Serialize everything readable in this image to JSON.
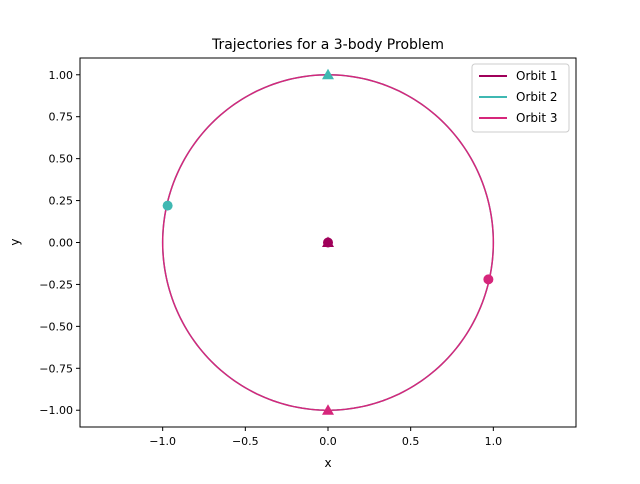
{
  "chart_data": {
    "type": "line",
    "title": "Trajectories for a 3-body Problem",
    "xlabel": "x",
    "ylabel": "y",
    "xlim": [
      -1.5,
      1.5
    ],
    "ylim": [
      -1.1,
      1.1
    ],
    "x_ticks": [
      -1.0,
      -0.5,
      0.0,
      0.5,
      1.0
    ],
    "x_tick_labels": [
      "−1.0",
      "−0.5",
      "0.0",
      "0.5",
      "1.0"
    ],
    "y_ticks": [
      1.0,
      0.75,
      0.5,
      0.25,
      0.0,
      -0.25,
      -0.5,
      -0.75,
      -1.0
    ],
    "y_tick_labels": [
      "1.00",
      "0.75",
      "0.50",
      "0.25",
      "0.00",
      "−0.25",
      "−0.50",
      "−0.75",
      "−1.00"
    ],
    "grid": false,
    "legend_position": "top-right",
    "series": [
      {
        "name": "Orbit 1",
        "color": "#a0005a",
        "center": [
          0.0,
          0.0
        ],
        "radius": 0.0,
        "start": [
          0.0,
          0.0
        ],
        "end": [
          0.0,
          0.0
        ]
      },
      {
        "name": "Orbit 2",
        "color": "#3fb8b2",
        "center": [
          0.0,
          0.0
        ],
        "radius": 1.0,
        "start": [
          -0.97,
          0.22
        ],
        "end": [
          0.0,
          1.0
        ]
      },
      {
        "name": "Orbit 3",
        "color": "#d6267b",
        "center": [
          0.0,
          0.0
        ],
        "radius": 1.0,
        "start": [
          0.97,
          -0.22
        ],
        "end": [
          0.0,
          -1.0
        ]
      }
    ]
  }
}
